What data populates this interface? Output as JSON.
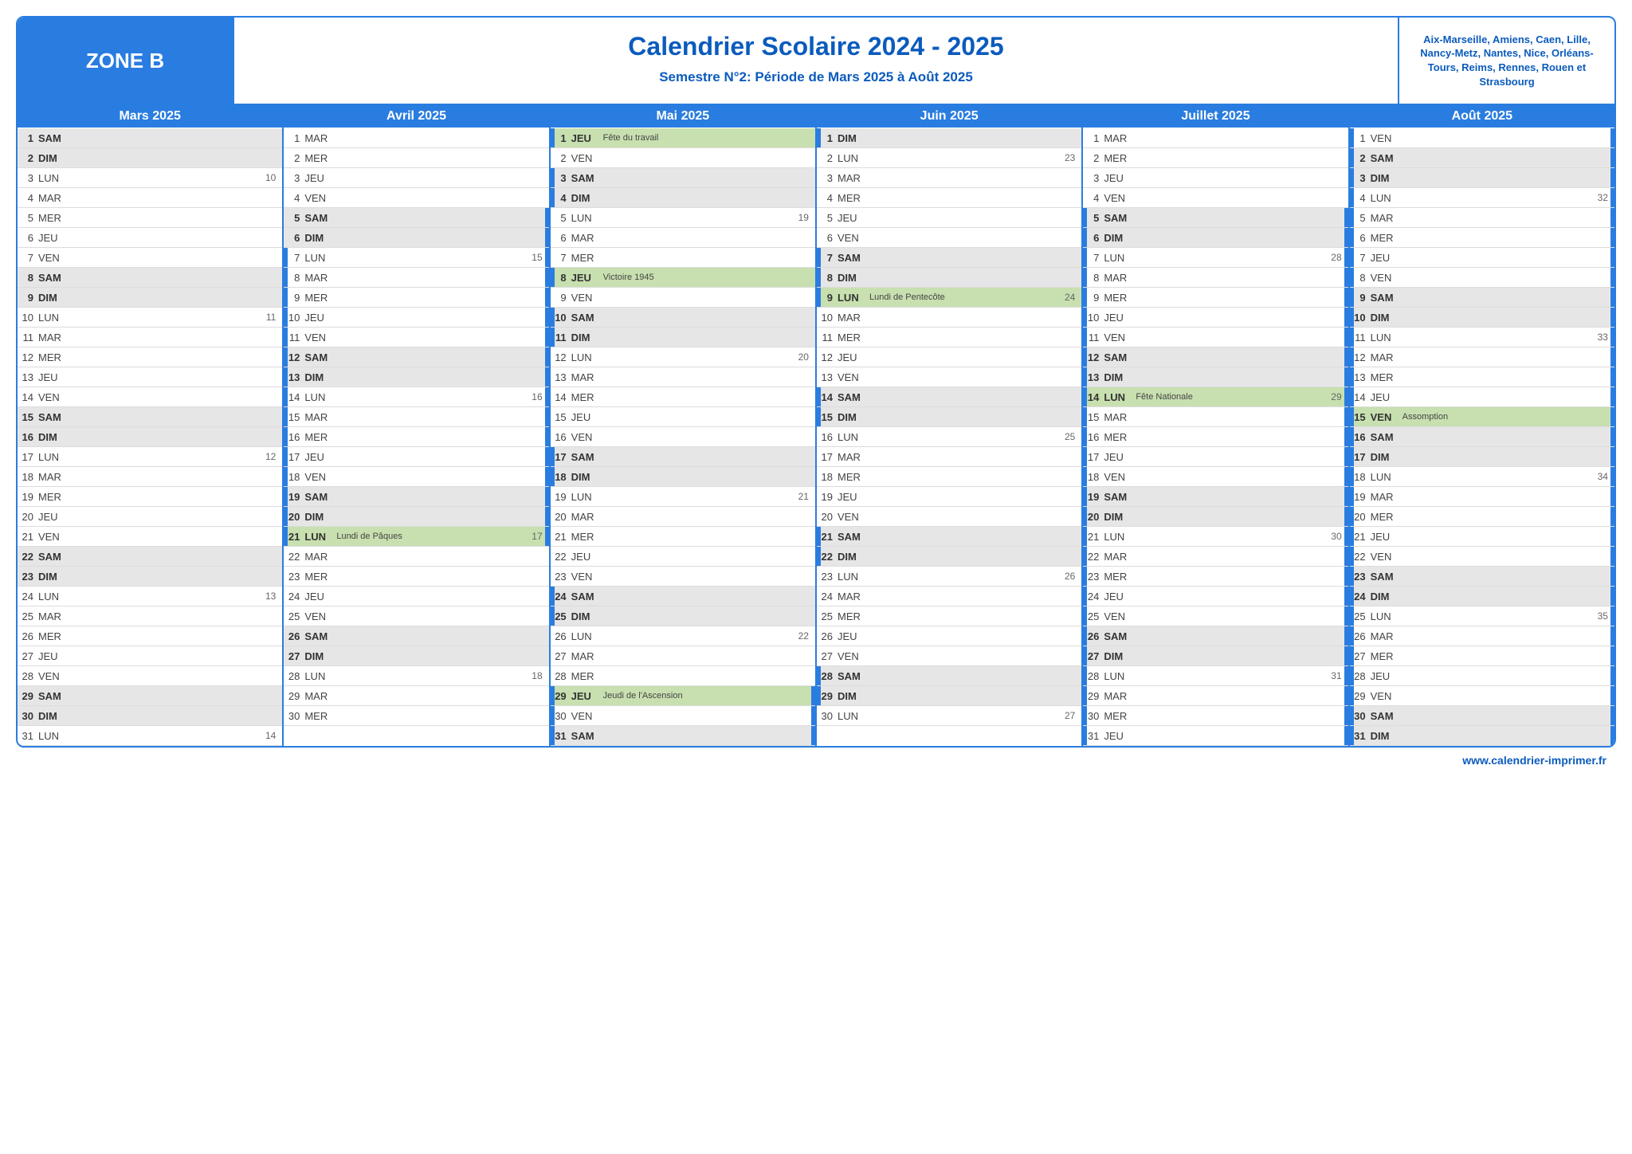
{
  "zone_label": "ZONE B",
  "title": "Calendrier Scolaire 2024 - 2025",
  "subtitle": "Semestre N°2: Période de Mars 2025 à Août 2025",
  "cities": "Aix-Marseille, Amiens, Caen, Lille, Nancy-Metz, Nantes, Nice, Orléans-Tours, Reims, Rennes, Rouen et Strasbourg",
  "footer": "www.calendrier-imprimer.fr",
  "colors": {
    "primary": "#2a7de0",
    "title_text": "#0b5bbd",
    "weekend_bg": "#e6e6e6",
    "holiday_bg": "#c8e0b0",
    "border": "#dcdcdc"
  },
  "months": [
    {
      "name": "Mars 2025",
      "days": [
        {
          "n": 1,
          "d": "SAM",
          "we": true
        },
        {
          "n": 2,
          "d": "DIM",
          "we": true
        },
        {
          "n": 3,
          "d": "LUN",
          "wk": 10
        },
        {
          "n": 4,
          "d": "MAR"
        },
        {
          "n": 5,
          "d": "MER"
        },
        {
          "n": 6,
          "d": "JEU"
        },
        {
          "n": 7,
          "d": "VEN"
        },
        {
          "n": 8,
          "d": "SAM",
          "we": true
        },
        {
          "n": 9,
          "d": "DIM",
          "we": true
        },
        {
          "n": 10,
          "d": "LUN",
          "wk": 11
        },
        {
          "n": 11,
          "d": "MAR"
        },
        {
          "n": 12,
          "d": "MER"
        },
        {
          "n": 13,
          "d": "JEU"
        },
        {
          "n": 14,
          "d": "VEN"
        },
        {
          "n": 15,
          "d": "SAM",
          "we": true
        },
        {
          "n": 16,
          "d": "DIM",
          "we": true
        },
        {
          "n": 17,
          "d": "LUN",
          "wk": 12
        },
        {
          "n": 18,
          "d": "MAR"
        },
        {
          "n": 19,
          "d": "MER"
        },
        {
          "n": 20,
          "d": "JEU"
        },
        {
          "n": 21,
          "d": "VEN"
        },
        {
          "n": 22,
          "d": "SAM",
          "we": true
        },
        {
          "n": 23,
          "d": "DIM",
          "we": true
        },
        {
          "n": 24,
          "d": "LUN",
          "wk": 13
        },
        {
          "n": 25,
          "d": "MAR"
        },
        {
          "n": 26,
          "d": "MER"
        },
        {
          "n": 27,
          "d": "JEU"
        },
        {
          "n": 28,
          "d": "VEN"
        },
        {
          "n": 29,
          "d": "SAM",
          "we": true
        },
        {
          "n": 30,
          "d": "DIM",
          "we": true
        },
        {
          "n": 31,
          "d": "LUN",
          "wk": 14
        }
      ]
    },
    {
      "name": "Avril 2025",
      "days": [
        {
          "n": 1,
          "d": "MAR"
        },
        {
          "n": 2,
          "d": "MER"
        },
        {
          "n": 3,
          "d": "JEU"
        },
        {
          "n": 4,
          "d": "VEN"
        },
        {
          "n": 5,
          "d": "SAM",
          "we": true,
          "mr": true
        },
        {
          "n": 6,
          "d": "DIM",
          "we": true,
          "mr": true
        },
        {
          "n": 7,
          "d": "LUN",
          "wk": 15,
          "ml": true,
          "mr": true
        },
        {
          "n": 8,
          "d": "MAR",
          "ml": true,
          "mr": true
        },
        {
          "n": 9,
          "d": "MER",
          "ml": true,
          "mr": true
        },
        {
          "n": 10,
          "d": "JEU",
          "ml": true,
          "mr": true
        },
        {
          "n": 11,
          "d": "VEN",
          "ml": true,
          "mr": true
        },
        {
          "n": 12,
          "d": "SAM",
          "we": true,
          "ml": true,
          "mr": true
        },
        {
          "n": 13,
          "d": "DIM",
          "we": true,
          "ml": true,
          "mr": true
        },
        {
          "n": 14,
          "d": "LUN",
          "wk": 16,
          "ml": true,
          "mr": true
        },
        {
          "n": 15,
          "d": "MAR",
          "ml": true,
          "mr": true
        },
        {
          "n": 16,
          "d": "MER",
          "ml": true,
          "mr": true
        },
        {
          "n": 17,
          "d": "JEU",
          "ml": true,
          "mr": true
        },
        {
          "n": 18,
          "d": "VEN",
          "ml": true,
          "mr": true
        },
        {
          "n": 19,
          "d": "SAM",
          "we": true,
          "ml": true,
          "mr": true
        },
        {
          "n": 20,
          "d": "DIM",
          "we": true,
          "ml": true,
          "mr": true
        },
        {
          "n": 21,
          "d": "LUN",
          "lbl": "Lundi de Pâques",
          "wk": 17,
          "hol": true,
          "ml": true,
          "mr": true
        },
        {
          "n": 22,
          "d": "MAR"
        },
        {
          "n": 23,
          "d": "MER"
        },
        {
          "n": 24,
          "d": "JEU"
        },
        {
          "n": 25,
          "d": "VEN"
        },
        {
          "n": 26,
          "d": "SAM",
          "we": true
        },
        {
          "n": 27,
          "d": "DIM",
          "we": true
        },
        {
          "n": 28,
          "d": "LUN",
          "wk": 18
        },
        {
          "n": 29,
          "d": "MAR"
        },
        {
          "n": 30,
          "d": "MER"
        }
      ]
    },
    {
      "name": "Mai 2025",
      "days": [
        {
          "n": 1,
          "d": "JEU",
          "lbl": "Fête du travail",
          "hol": true,
          "ml": true
        },
        {
          "n": 2,
          "d": "VEN"
        },
        {
          "n": 3,
          "d": "SAM",
          "we": true,
          "ml": true
        },
        {
          "n": 4,
          "d": "DIM",
          "we": true,
          "ml": true
        },
        {
          "n": 5,
          "d": "LUN",
          "wk": 19
        },
        {
          "n": 6,
          "d": "MAR"
        },
        {
          "n": 7,
          "d": "MER"
        },
        {
          "n": 8,
          "d": "JEU",
          "lbl": "Victoire 1945",
          "hol": true,
          "ml": true
        },
        {
          "n": 9,
          "d": "VEN"
        },
        {
          "n": 10,
          "d": "SAM",
          "we": true,
          "ml": true
        },
        {
          "n": 11,
          "d": "DIM",
          "we": true,
          "ml": true
        },
        {
          "n": 12,
          "d": "LUN",
          "wk": 20
        },
        {
          "n": 13,
          "d": "MAR"
        },
        {
          "n": 14,
          "d": "MER"
        },
        {
          "n": 15,
          "d": "JEU"
        },
        {
          "n": 16,
          "d": "VEN"
        },
        {
          "n": 17,
          "d": "SAM",
          "we": true,
          "ml": true
        },
        {
          "n": 18,
          "d": "DIM",
          "we": true,
          "ml": true
        },
        {
          "n": 19,
          "d": "LUN",
          "wk": 21
        },
        {
          "n": 20,
          "d": "MAR"
        },
        {
          "n": 21,
          "d": "MER"
        },
        {
          "n": 22,
          "d": "JEU"
        },
        {
          "n": 23,
          "d": "VEN"
        },
        {
          "n": 24,
          "d": "SAM",
          "we": true,
          "ml": true
        },
        {
          "n": 25,
          "d": "DIM",
          "we": true,
          "ml": true
        },
        {
          "n": 26,
          "d": "LUN",
          "wk": 22
        },
        {
          "n": 27,
          "d": "MAR"
        },
        {
          "n": 28,
          "d": "MER"
        },
        {
          "n": 29,
          "d": "JEU",
          "lbl": "Jeudi de l'Ascension",
          "hol": true,
          "ml": true,
          "mr": true
        },
        {
          "n": 30,
          "d": "VEN",
          "ml": true,
          "mr": true
        },
        {
          "n": 31,
          "d": "SAM",
          "we": true,
          "ml": true,
          "mr": true
        }
      ]
    },
    {
      "name": "Juin 2025",
      "days": [
        {
          "n": 1,
          "d": "DIM",
          "we": true,
          "ml": true
        },
        {
          "n": 2,
          "d": "LUN",
          "wk": 23
        },
        {
          "n": 3,
          "d": "MAR"
        },
        {
          "n": 4,
          "d": "MER"
        },
        {
          "n": 5,
          "d": "JEU"
        },
        {
          "n": 6,
          "d": "VEN"
        },
        {
          "n": 7,
          "d": "SAM",
          "we": true,
          "ml": true
        },
        {
          "n": 8,
          "d": "DIM",
          "we": true,
          "ml": true
        },
        {
          "n": 9,
          "d": "LUN",
          "lbl": "Lundi de Pentecôte",
          "wk": 24,
          "hol": true,
          "ml": true
        },
        {
          "n": 10,
          "d": "MAR"
        },
        {
          "n": 11,
          "d": "MER"
        },
        {
          "n": 12,
          "d": "JEU"
        },
        {
          "n": 13,
          "d": "VEN"
        },
        {
          "n": 14,
          "d": "SAM",
          "we": true,
          "ml": true
        },
        {
          "n": 15,
          "d": "DIM",
          "we": true,
          "ml": true
        },
        {
          "n": 16,
          "d": "LUN",
          "wk": 25
        },
        {
          "n": 17,
          "d": "MAR"
        },
        {
          "n": 18,
          "d": "MER"
        },
        {
          "n": 19,
          "d": "JEU"
        },
        {
          "n": 20,
          "d": "VEN"
        },
        {
          "n": 21,
          "d": "SAM",
          "we": true,
          "ml": true
        },
        {
          "n": 22,
          "d": "DIM",
          "we": true,
          "ml": true
        },
        {
          "n": 23,
          "d": "LUN",
          "wk": 26
        },
        {
          "n": 24,
          "d": "MAR"
        },
        {
          "n": 25,
          "d": "MER"
        },
        {
          "n": 26,
          "d": "JEU"
        },
        {
          "n": 27,
          "d": "VEN"
        },
        {
          "n": 28,
          "d": "SAM",
          "we": true,
          "ml": true
        },
        {
          "n": 29,
          "d": "DIM",
          "we": true,
          "ml": true
        },
        {
          "n": 30,
          "d": "LUN",
          "wk": 27
        }
      ]
    },
    {
      "name": "Juillet 2025",
      "days": [
        {
          "n": 1,
          "d": "MAR"
        },
        {
          "n": 2,
          "d": "MER"
        },
        {
          "n": 3,
          "d": "JEU"
        },
        {
          "n": 4,
          "d": "VEN"
        },
        {
          "n": 5,
          "d": "SAM",
          "we": true,
          "ml": true,
          "mr": true
        },
        {
          "n": 6,
          "d": "DIM",
          "we": true,
          "ml": true,
          "mr": true
        },
        {
          "n": 7,
          "d": "LUN",
          "wk": 28,
          "ml": true,
          "mr": true
        },
        {
          "n": 8,
          "d": "MAR",
          "ml": true,
          "mr": true
        },
        {
          "n": 9,
          "d": "MER",
          "ml": true,
          "mr": true
        },
        {
          "n": 10,
          "d": "JEU",
          "ml": true,
          "mr": true
        },
        {
          "n": 11,
          "d": "VEN",
          "ml": true,
          "mr": true
        },
        {
          "n": 12,
          "d": "SAM",
          "we": true,
          "ml": true,
          "mr": true
        },
        {
          "n": 13,
          "d": "DIM",
          "we": true,
          "ml": true,
          "mr": true
        },
        {
          "n": 14,
          "d": "LUN",
          "lbl": "Fête Nationale",
          "wk": 29,
          "hol": true,
          "ml": true,
          "mr": true
        },
        {
          "n": 15,
          "d": "MAR",
          "ml": true,
          "mr": true
        },
        {
          "n": 16,
          "d": "MER",
          "ml": true,
          "mr": true
        },
        {
          "n": 17,
          "d": "JEU",
          "ml": true,
          "mr": true
        },
        {
          "n": 18,
          "d": "VEN",
          "ml": true,
          "mr": true
        },
        {
          "n": 19,
          "d": "SAM",
          "we": true,
          "ml": true,
          "mr": true
        },
        {
          "n": 20,
          "d": "DIM",
          "we": true,
          "ml": true,
          "mr": true
        },
        {
          "n": 21,
          "d": "LUN",
          "wk": 30,
          "ml": true,
          "mr": true
        },
        {
          "n": 22,
          "d": "MAR",
          "ml": true,
          "mr": true
        },
        {
          "n": 23,
          "d": "MER",
          "ml": true,
          "mr": true
        },
        {
          "n": 24,
          "d": "JEU",
          "ml": true,
          "mr": true
        },
        {
          "n": 25,
          "d": "VEN",
          "ml": true,
          "mr": true
        },
        {
          "n": 26,
          "d": "SAM",
          "we": true,
          "ml": true,
          "mr": true
        },
        {
          "n": 27,
          "d": "DIM",
          "we": true,
          "ml": true,
          "mr": true
        },
        {
          "n": 28,
          "d": "LUN",
          "wk": 31,
          "ml": true,
          "mr": true
        },
        {
          "n": 29,
          "d": "MAR",
          "ml": true,
          "mr": true
        },
        {
          "n": 30,
          "d": "MER",
          "ml": true,
          "mr": true
        },
        {
          "n": 31,
          "d": "JEU",
          "ml": true,
          "mr": true
        }
      ]
    },
    {
      "name": "Août 2025",
      "days": [
        {
          "n": 1,
          "d": "VEN",
          "ml": true,
          "mr": true
        },
        {
          "n": 2,
          "d": "SAM",
          "we": true,
          "ml": true,
          "mr": true
        },
        {
          "n": 3,
          "d": "DIM",
          "we": true,
          "ml": true,
          "mr": true
        },
        {
          "n": 4,
          "d": "LUN",
          "wk": 32,
          "ml": true,
          "mr": true
        },
        {
          "n": 5,
          "d": "MAR",
          "ml": true,
          "mr": true
        },
        {
          "n": 6,
          "d": "MER",
          "ml": true,
          "mr": true
        },
        {
          "n": 7,
          "d": "JEU",
          "ml": true,
          "mr": true
        },
        {
          "n": 8,
          "d": "VEN",
          "ml": true,
          "mr": true
        },
        {
          "n": 9,
          "d": "SAM",
          "we": true,
          "ml": true,
          "mr": true
        },
        {
          "n": 10,
          "d": "DIM",
          "we": true,
          "ml": true,
          "mr": true
        },
        {
          "n": 11,
          "d": "LUN",
          "wk": 33,
          "ml": true,
          "mr": true
        },
        {
          "n": 12,
          "d": "MAR",
          "ml": true,
          "mr": true
        },
        {
          "n": 13,
          "d": "MER",
          "ml": true,
          "mr": true
        },
        {
          "n": 14,
          "d": "JEU",
          "ml": true,
          "mr": true
        },
        {
          "n": 15,
          "d": "VEN",
          "lbl": "Assomption",
          "hol": true,
          "ml": true,
          "mr": true
        },
        {
          "n": 16,
          "d": "SAM",
          "we": true,
          "ml": true,
          "mr": true
        },
        {
          "n": 17,
          "d": "DIM",
          "we": true,
          "ml": true,
          "mr": true
        },
        {
          "n": 18,
          "d": "LUN",
          "wk": 34,
          "ml": true,
          "mr": true
        },
        {
          "n": 19,
          "d": "MAR",
          "ml": true,
          "mr": true
        },
        {
          "n": 20,
          "d": "MER",
          "ml": true,
          "mr": true
        },
        {
          "n": 21,
          "d": "JEU",
          "ml": true,
          "mr": true
        },
        {
          "n": 22,
          "d": "VEN",
          "ml": true,
          "mr": true
        },
        {
          "n": 23,
          "d": "SAM",
          "we": true,
          "ml": true,
          "mr": true
        },
        {
          "n": 24,
          "d": "DIM",
          "we": true,
          "ml": true,
          "mr": true
        },
        {
          "n": 25,
          "d": "LUN",
          "wk": 35,
          "ml": true,
          "mr": true
        },
        {
          "n": 26,
          "d": "MAR",
          "ml": true,
          "mr": true
        },
        {
          "n": 27,
          "d": "MER",
          "ml": true,
          "mr": true
        },
        {
          "n": 28,
          "d": "JEU",
          "ml": true,
          "mr": true
        },
        {
          "n": 29,
          "d": "VEN",
          "ml": true,
          "mr": true
        },
        {
          "n": 30,
          "d": "SAM",
          "we": true,
          "ml": true,
          "mr": true
        },
        {
          "n": 31,
          "d": "DIM",
          "we": true,
          "ml": true,
          "mr": true
        }
      ]
    }
  ]
}
